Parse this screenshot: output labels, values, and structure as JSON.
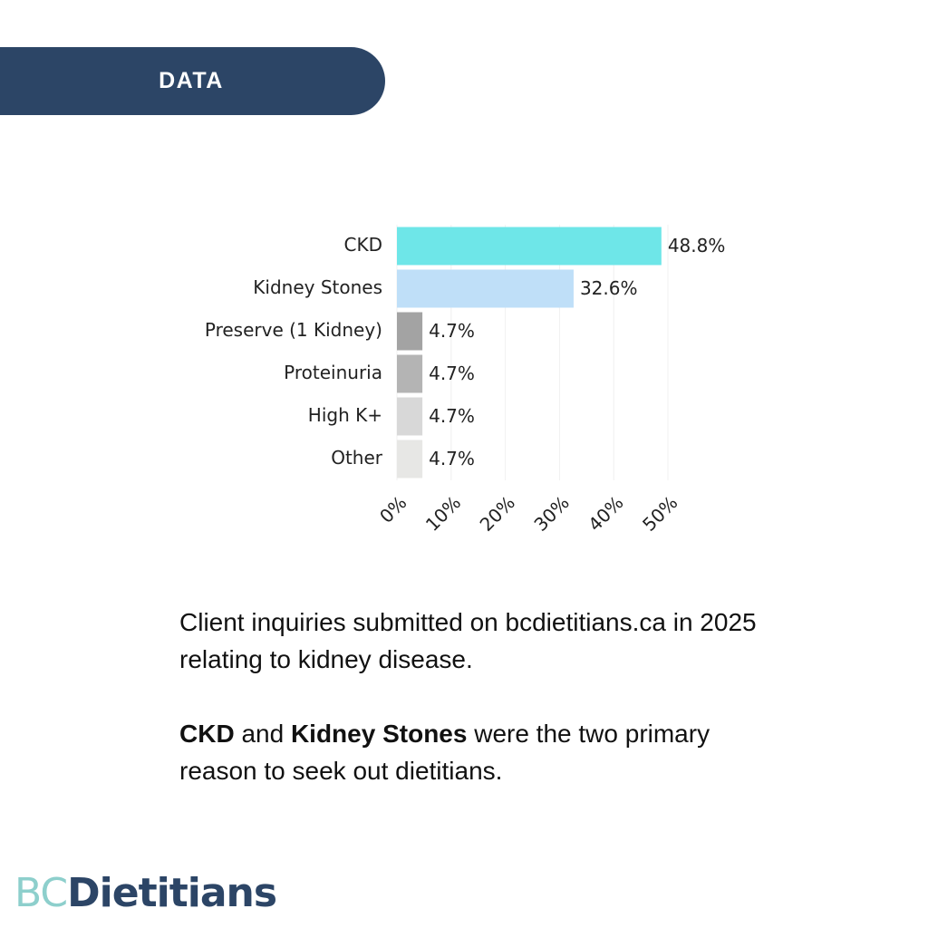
{
  "header": {
    "label": "DATA"
  },
  "chart_data": {
    "type": "bar",
    "orientation": "horizontal",
    "categories": [
      "CKD",
      "Kidney Stones",
      "Preserve (1 Kidney)",
      "Proteinuria",
      "High K+",
      "Other"
    ],
    "values": [
      48.8,
      32.6,
      4.7,
      4.7,
      4.7,
      4.7
    ],
    "value_labels": [
      "48.8%",
      "32.6%",
      "4.7%",
      "4.7%",
      "4.7%",
      "4.7%"
    ],
    "colors": [
      "#6ee6e8",
      "#bfdff8",
      "#a3a3a3",
      "#b4b4b4",
      "#d8d8d8",
      "#e7e7e5"
    ],
    "xlim": [
      0,
      50
    ],
    "xticks": [
      {
        "value": 0,
        "label": "0%"
      },
      {
        "value": 10,
        "label": "10%"
      },
      {
        "value": 20,
        "label": "20%"
      },
      {
        "value": 30,
        "label": "30%"
      },
      {
        "value": 40,
        "label": "40%"
      },
      {
        "value": 50,
        "label": "50%"
      }
    ],
    "grid": true
  },
  "caption": {
    "paragraphs": [
      [
        {
          "text": "Client inquiries submitted on bcdietitians.ca in 2025 relating to kidney disease.",
          "bold": false
        }
      ],
      [
        {
          "text": "CKD",
          "bold": true
        },
        {
          "text": " and ",
          "bold": false
        },
        {
          "text": "Kidney Stones",
          "bold": true
        },
        {
          "text": " were the two primary reason to seek out dietitians.",
          "bold": false
        }
      ]
    ]
  },
  "logo": {
    "part1": "BC",
    "part2": "Dietitians"
  }
}
